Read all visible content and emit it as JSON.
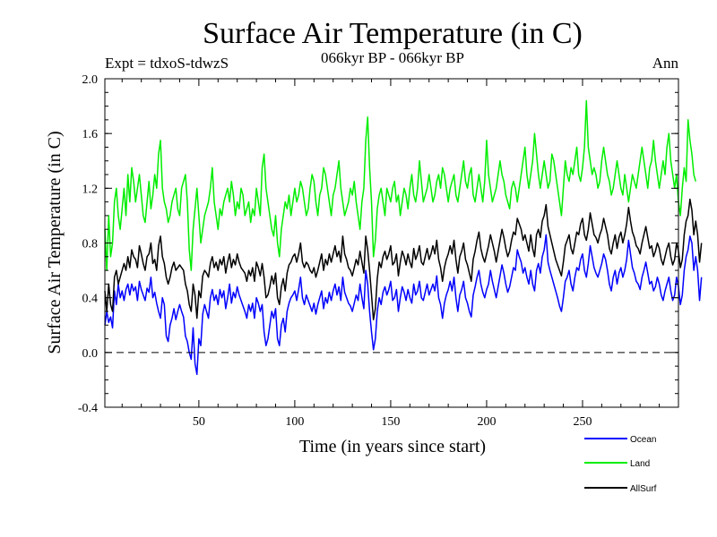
{
  "chart_data": {
    "type": "line",
    "title": "Surface Air Temperature (in C)",
    "left_annotation": "Expt = tdxoS-tdwzS",
    "center_annotation": "066kyr BP - 066kyr BP",
    "right_annotation": "Ann",
    "xlabel": "Time (in years since start)",
    "ylabel": "Surface Air Temperature (in C)",
    "xlim": [
      1,
      300
    ],
    "ylim": [
      -0.4,
      2.0
    ],
    "xticks": [
      50,
      100,
      150,
      200,
      250
    ],
    "yticks": [
      "-0.4",
      "0.0",
      "0.4",
      "0.8",
      "1.2",
      "1.6",
      "2.0"
    ],
    "reference_line": 0.0,
    "legend_placement": "bottom-right",
    "series": [
      {
        "name": "Ocean",
        "color": "#0000ff",
        "values": [
          0.2,
          0.3,
          0.22,
          0.26,
          0.18,
          0.45,
          0.35,
          0.5,
          0.4,
          0.45,
          0.38,
          0.46,
          0.5,
          0.42,
          0.5,
          0.45,
          0.48,
          0.38,
          0.52,
          0.46,
          0.42,
          0.38,
          0.47,
          0.44,
          0.55,
          0.4,
          0.44,
          0.36,
          0.3,
          0.25,
          0.4,
          0.35,
          0.12,
          0.08,
          0.2,
          0.25,
          0.32,
          0.24,
          0.3,
          0.35,
          0.3,
          0.26,
          0.12,
          0.08,
          0.0,
          -0.05,
          0.18,
          -0.08,
          -0.16,
          0.1,
          0.05,
          0.28,
          0.35,
          0.3,
          0.25,
          0.4,
          0.46,
          0.38,
          0.42,
          0.35,
          0.46,
          0.4,
          0.45,
          0.32,
          0.4,
          0.5,
          0.36,
          0.44,
          0.4,
          0.48,
          0.42,
          0.38,
          0.34,
          0.3,
          0.25,
          0.35,
          0.3,
          0.36,
          0.25,
          0.4,
          0.36,
          0.3,
          0.35,
          0.15,
          0.05,
          0.1,
          0.2,
          0.3,
          0.25,
          0.32,
          0.1,
          0.05,
          0.2,
          0.25,
          0.15,
          0.3,
          0.36,
          0.4,
          0.42,
          0.45,
          0.38,
          0.46,
          0.55,
          0.4,
          0.35,
          0.42,
          0.38,
          0.34,
          0.3,
          0.36,
          0.28,
          0.35,
          0.4,
          0.45,
          0.32,
          0.4,
          0.36,
          0.44,
          0.38,
          0.45,
          0.5,
          0.42,
          0.48,
          0.38,
          0.55,
          0.44,
          0.4,
          0.36,
          0.34,
          0.3,
          0.36,
          0.42,
          0.38,
          0.5,
          0.4,
          0.32,
          0.6,
          0.5,
          0.3,
          0.15,
          0.02,
          0.1,
          0.3,
          0.4,
          0.35,
          0.44,
          0.48,
          0.42,
          0.46,
          0.52,
          0.38,
          0.4,
          0.46,
          0.3,
          0.4,
          0.48,
          0.44,
          0.38,
          0.46,
          0.4,
          0.36,
          0.5,
          0.42,
          0.45,
          0.52,
          0.4,
          0.38,
          0.44,
          0.5,
          0.42,
          0.46,
          0.5,
          0.45,
          0.56,
          0.4,
          0.35,
          0.25,
          0.36,
          0.42,
          0.46,
          0.52,
          0.45,
          0.55,
          0.4,
          0.3,
          0.42,
          0.46,
          0.52,
          0.4,
          0.36,
          0.3,
          0.26,
          0.42,
          0.48,
          0.55,
          0.6,
          0.5,
          0.44,
          0.4,
          0.46,
          0.5,
          0.6,
          0.52,
          0.46,
          0.4,
          0.48,
          0.56,
          0.64,
          0.58,
          0.5,
          0.44,
          0.48,
          0.55,
          0.62,
          0.6,
          0.75,
          0.7,
          0.66,
          0.58,
          0.62,
          0.55,
          0.5,
          0.6,
          0.5,
          0.45,
          0.6,
          0.65,
          0.58,
          0.7,
          0.75,
          0.86,
          0.66,
          0.6,
          0.55,
          0.5,
          0.45,
          0.4,
          0.34,
          0.3,
          0.4,
          0.52,
          0.55,
          0.6,
          0.5,
          0.45,
          0.55,
          0.62,
          0.6,
          0.68,
          0.72,
          0.6,
          0.55,
          0.65,
          0.78,
          0.7,
          0.62,
          0.58,
          0.55,
          0.6,
          0.65,
          0.72,
          0.68,
          0.6,
          0.5,
          0.45,
          0.55,
          0.6,
          0.5,
          0.58,
          0.62,
          0.55,
          0.6,
          0.68,
          0.82,
          0.72,
          0.62,
          0.58,
          0.52,
          0.5,
          0.46,
          0.55,
          0.6,
          0.66,
          0.58,
          0.5,
          0.52,
          0.45,
          0.48,
          0.55,
          0.5,
          0.42,
          0.38,
          0.45,
          0.5,
          0.55,
          0.45,
          0.38,
          0.42,
          0.55,
          0.48,
          0.35,
          0.42,
          0.6,
          0.7,
          0.75,
          0.85,
          0.8,
          0.6,
          0.7,
          0.6,
          0.38,
          0.55
        ]
      },
      {
        "name": "Land",
        "color": "#00ee00",
        "values": [
          0.9,
          0.6,
          1.0,
          0.7,
          0.8,
          1.1,
          1.2,
          1.0,
          0.9,
          1.05,
          1.2,
          1.0,
          1.3,
          1.1,
          1.35,
          1.25,
          1.1,
          1.2,
          1.3,
          1.15,
          1.0,
          0.95,
          1.1,
          1.25,
          1.05,
          1.15,
          1.3,
          1.2,
          1.45,
          1.55,
          1.2,
          1.1,
          1.05,
          0.95,
          1.0,
          1.1,
          1.15,
          1.2,
          1.05,
          1.0,
          1.2,
          1.25,
          1.3,
          1.1,
          0.75,
          0.6,
          0.9,
          1.05,
          1.2,
          1.0,
          0.8,
          0.9,
          1.0,
          1.05,
          1.1,
          1.2,
          1.35,
          1.1,
          1.0,
          0.9,
          1.05,
          1.0,
          1.1,
          1.15,
          1.2,
          1.1,
          1.25,
          1.15,
          1.0,
          1.1,
          1.05,
          1.2,
          1.15,
          1.0,
          1.05,
          1.1,
          0.95,
          1.05,
          1.0,
          1.2,
          1.1,
          1.0,
          1.35,
          1.45,
          1.2,
          1.1,
          1.0,
          0.9,
          0.85,
          1.0,
          0.8,
          0.7,
          0.9,
          1.0,
          1.1,
          1.05,
          1.15,
          1.0,
          1.1,
          1.2,
          1.1,
          1.15,
          1.25,
          1.2,
          1.1,
          1.0,
          1.05,
          1.2,
          1.3,
          1.25,
          1.1,
          1.0,
          1.15,
          1.2,
          1.35,
          1.3,
          1.2,
          1.1,
          1.0,
          1.15,
          1.2,
          1.3,
          1.4,
          1.2,
          1.1,
          1.0,
          1.05,
          1.1,
          1.2,
          1.15,
          1.25,
          1.1,
          1.0,
          0.9,
          1.1,
          1.2,
          1.55,
          1.72,
          1.35,
          1.1,
          0.7,
          0.82,
          1.05,
          1.15,
          1.2,
          1.1,
          1.0,
          1.2,
          1.15,
          1.1,
          1.2,
          1.25,
          1.1,
          1.15,
          1.0,
          1.1,
          1.2,
          1.15,
          1.05,
          1.2,
          1.3,
          1.15,
          1.1,
          1.2,
          1.4,
          1.25,
          1.1,
          1.15,
          1.2,
          1.3,
          1.2,
          1.1,
          1.15,
          1.25,
          1.3,
          1.2,
          1.35,
          1.3,
          1.2,
          1.1,
          1.2,
          1.25,
          1.3,
          1.15,
          1.1,
          1.2,
          1.3,
          1.4,
          1.25,
          1.2,
          1.3,
          1.35,
          1.15,
          1.1,
          1.2,
          1.3,
          1.2,
          1.1,
          1.25,
          1.55,
          1.3,
          1.2,
          1.1,
          1.15,
          1.2,
          1.3,
          1.4,
          1.3,
          1.25,
          1.15,
          1.1,
          1.05,
          1.2,
          1.25,
          1.2,
          1.1,
          1.2,
          1.3,
          1.4,
          1.5,
          1.3,
          1.2,
          1.3,
          1.4,
          1.6,
          1.45,
          1.3,
          1.2,
          1.3,
          1.4,
          1.3,
          1.2,
          1.25,
          1.45,
          1.4,
          1.3,
          1.2,
          1.1,
          1.0,
          1.2,
          1.4,
          1.3,
          1.25,
          1.35,
          1.3,
          1.4,
          1.5,
          1.3,
          1.25,
          1.35,
          1.5,
          1.84,
          1.5,
          1.4,
          1.3,
          1.35,
          1.3,
          1.2,
          1.25,
          1.4,
          1.5,
          1.4,
          1.3,
          1.25,
          1.15,
          1.2,
          1.3,
          1.4,
          1.3,
          1.2,
          1.15,
          1.3,
          1.2,
          1.1,
          1.2,
          1.3,
          1.25,
          1.2,
          1.3,
          1.4,
          1.5,
          1.4,
          1.3,
          1.2,
          1.35,
          1.4,
          1.55,
          1.4,
          1.3,
          1.2,
          1.3,
          1.4,
          1.3,
          1.5,
          1.6,
          1.4,
          1.3,
          1.2,
          1.3,
          1.1,
          1.0,
          1.2,
          1.35,
          1.25,
          1.7,
          1.55,
          1.45,
          1.3,
          1.25
        ]
      },
      {
        "name": "AllSurf",
        "color": "#000000",
        "values": [
          0.45,
          0.3,
          0.5,
          0.35,
          0.3,
          0.55,
          0.6,
          0.5,
          0.55,
          0.6,
          0.65,
          0.6,
          0.7,
          0.62,
          0.75,
          0.7,
          0.68,
          0.62,
          0.78,
          0.72,
          0.65,
          0.6,
          0.7,
          0.72,
          0.8,
          0.65,
          0.68,
          0.6,
          0.78,
          0.85,
          0.7,
          0.65,
          0.55,
          0.5,
          0.55,
          0.62,
          0.66,
          0.6,
          0.62,
          0.64,
          0.62,
          0.6,
          0.5,
          0.45,
          0.35,
          0.3,
          0.5,
          0.42,
          0.25,
          0.45,
          0.4,
          0.56,
          0.6,
          0.58,
          0.55,
          0.65,
          0.7,
          0.62,
          0.66,
          0.6,
          0.68,
          0.64,
          0.7,
          0.58,
          0.66,
          0.72,
          0.62,
          0.68,
          0.64,
          0.72,
          0.66,
          0.62,
          0.6,
          0.58,
          0.52,
          0.6,
          0.56,
          0.62,
          0.52,
          0.66,
          0.62,
          0.56,
          0.65,
          0.55,
          0.4,
          0.42,
          0.48,
          0.56,
          0.5,
          0.58,
          0.4,
          0.35,
          0.48,
          0.54,
          0.45,
          0.58,
          0.64,
          0.66,
          0.7,
          0.72,
          0.66,
          0.72,
          0.8,
          0.66,
          0.62,
          0.66,
          0.64,
          0.6,
          0.58,
          0.62,
          0.55,
          0.6,
          0.66,
          0.72,
          0.6,
          0.68,
          0.64,
          0.72,
          0.66,
          0.72,
          0.78,
          0.7,
          0.74,
          0.66,
          0.85,
          0.72,
          0.68,
          0.62,
          0.6,
          0.56,
          0.62,
          0.68,
          0.64,
          0.74,
          0.66,
          0.58,
          0.85,
          0.75,
          0.6,
          0.42,
          0.24,
          0.32,
          0.54,
          0.66,
          0.62,
          0.7,
          0.74,
          0.68,
          0.72,
          0.78,
          0.64,
          0.66,
          0.72,
          0.56,
          0.66,
          0.74,
          0.7,
          0.64,
          0.72,
          0.66,
          0.62,
          0.76,
          0.68,
          0.72,
          0.78,
          0.66,
          0.64,
          0.7,
          0.76,
          0.68,
          0.72,
          0.78,
          0.72,
          0.82,
          0.68,
          0.62,
          0.52,
          0.62,
          0.68,
          0.72,
          0.78,
          0.72,
          0.82,
          0.68,
          0.58,
          0.7,
          0.74,
          0.8,
          0.68,
          0.64,
          0.58,
          0.52,
          0.68,
          0.74,
          0.82,
          0.88,
          0.76,
          0.7,
          0.66,
          0.72,
          0.78,
          0.86,
          0.8,
          0.74,
          0.66,
          0.74,
          0.82,
          0.9,
          0.84,
          0.76,
          0.7,
          0.74,
          0.82,
          0.88,
          0.86,
          0.98,
          0.94,
          0.9,
          0.82,
          0.86,
          0.8,
          0.74,
          0.86,
          0.76,
          0.7,
          0.86,
          0.9,
          0.84,
          0.96,
          1.0,
          1.08,
          0.92,
          0.86,
          0.8,
          0.74,
          0.68,
          0.64,
          0.6,
          0.56,
          0.66,
          0.78,
          0.82,
          0.86,
          0.76,
          0.72,
          0.8,
          0.88,
          0.86,
          0.94,
          0.98,
          0.86,
          0.82,
          0.9,
          1.02,
          0.94,
          0.86,
          0.84,
          0.8,
          0.86,
          0.9,
          0.98,
          0.92,
          0.86,
          0.76,
          0.72,
          0.8,
          0.86,
          0.76,
          0.84,
          0.88,
          0.8,
          0.86,
          0.94,
          1.06,
          0.96,
          0.88,
          0.84,
          0.78,
          0.76,
          0.72,
          0.8,
          0.86,
          0.92,
          0.84,
          0.76,
          0.78,
          0.7,
          0.74,
          0.8,
          0.76,
          0.68,
          0.64,
          0.7,
          0.76,
          0.8,
          0.7,
          0.64,
          0.68,
          0.8,
          0.74,
          0.62,
          0.68,
          0.86,
          0.96,
          1.0,
          1.12,
          1.04,
          0.86,
          0.96,
          0.86,
          0.66,
          0.8
        ]
      }
    ]
  }
}
